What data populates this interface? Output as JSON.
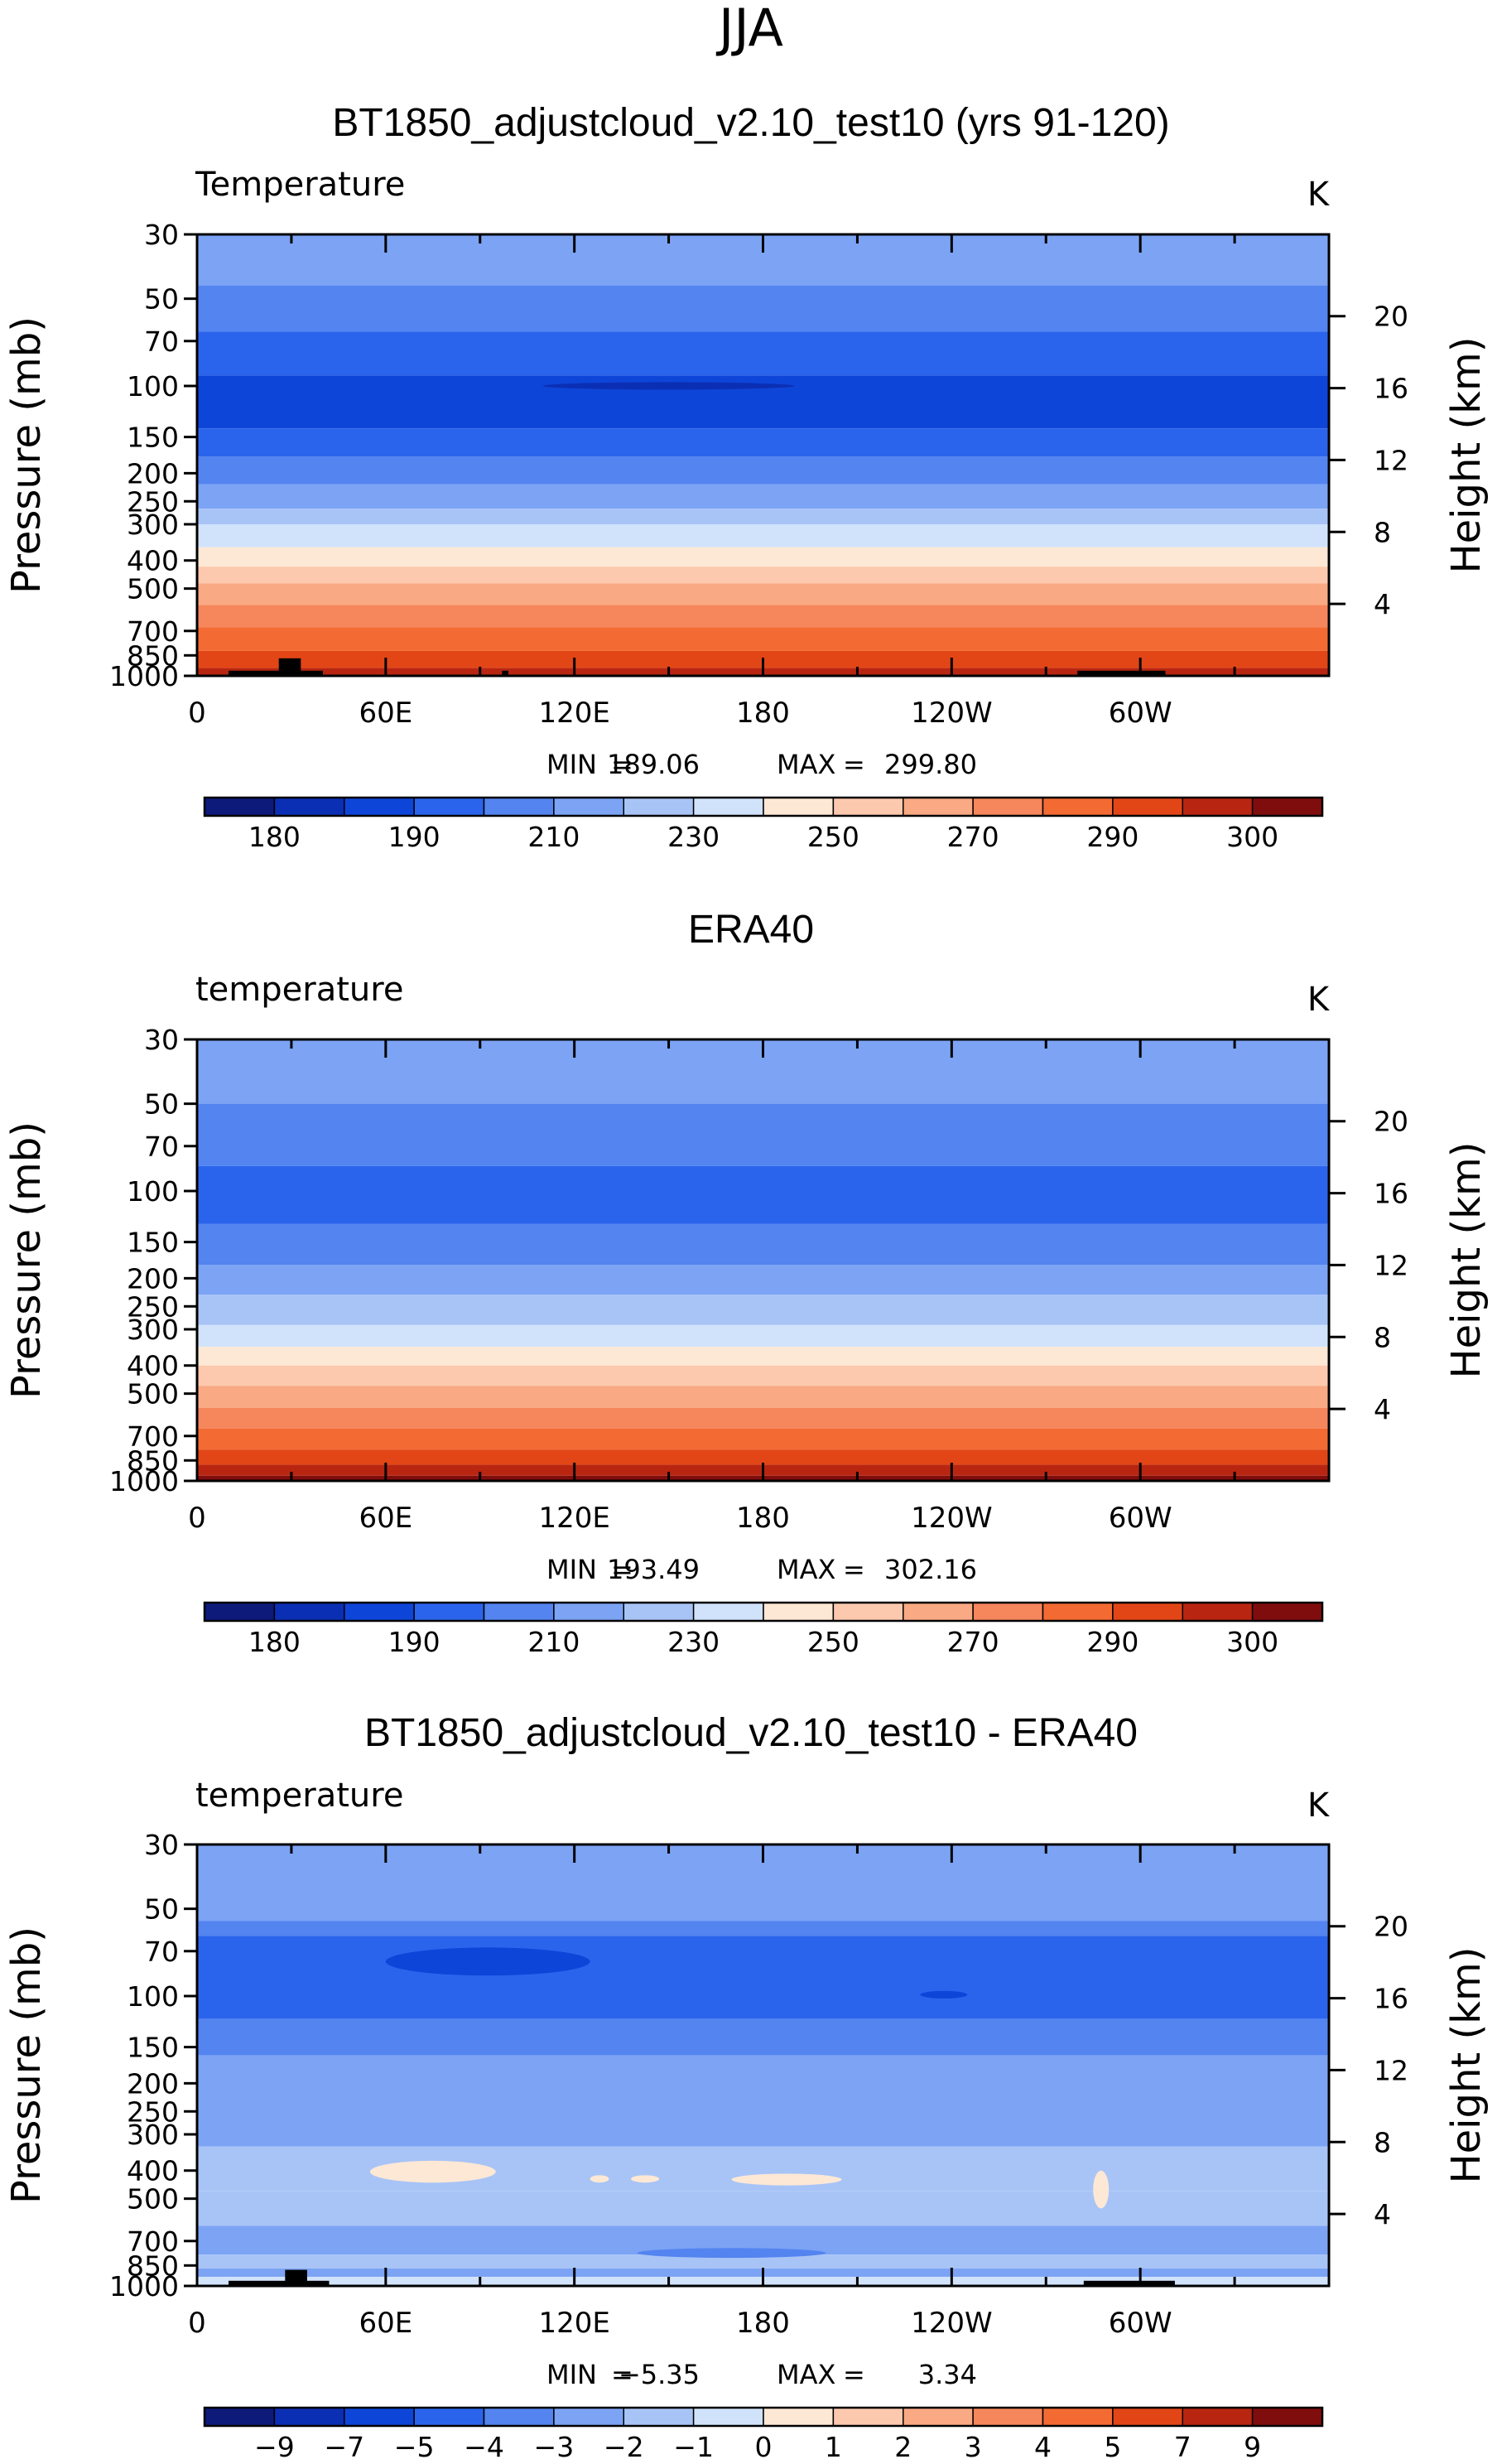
{
  "figure_title": "JJA",
  "chart_data": [
    {
      "type": "heatmap",
      "title": "BT1850_adjustcloud_v2.10_test10 (yrs 91-120)",
      "variable_label": "Temperature",
      "units": "K",
      "ylabel": "Pressure (mb)",
      "y2label": "Height (km)",
      "x_ticks": [
        "0",
        "60E",
        "120E",
        "180",
        "120W",
        "60W"
      ],
      "x_tick_lon": [
        0,
        60,
        120,
        180,
        240,
        300
      ],
      "xlim": [
        0,
        360
      ],
      "y_ticks": [
        "30",
        "50",
        "70",
        "100",
        "150",
        "200",
        "250",
        "300",
        "400",
        "500",
        "700",
        "850",
        "1000"
      ],
      "y_tick_p": [
        30,
        50,
        70,
        100,
        150,
        200,
        250,
        300,
        400,
        500,
        700,
        850,
        1000
      ],
      "ylim": [
        1000,
        30
      ],
      "height_ticks": [
        "20",
        "16",
        "12",
        "8",
        "4"
      ],
      "height_km": [
        20,
        16,
        12,
        8,
        4
      ],
      "min_label": "MIN",
      "min_value": "189.06",
      "max_label": "MAX",
      "max_value": "299.80",
      "colorbar_ticks": [
        "180",
        "190",
        "210",
        "230",
        "250",
        "270",
        "290",
        "300"
      ],
      "colorbar_tick_box": [
        1,
        3,
        5,
        7,
        9,
        11,
        13,
        15
      ],
      "levels_bands": [
        {
          "p": 30,
          "level": 5
        },
        {
          "p": 45,
          "level": 4
        },
        {
          "p": 65,
          "level": 3
        },
        {
          "p": 92,
          "level": 2
        },
        {
          "p": 140,
          "level": 3
        },
        {
          "p": 175,
          "level": 4
        },
        {
          "p": 218,
          "level": 5
        },
        {
          "p": 265,
          "level": 6
        },
        {
          "p": 300,
          "level": 7
        },
        {
          "p": 360,
          "level": 8
        },
        {
          "p": 420,
          "level": 9
        },
        {
          "p": 480,
          "level": 10
        },
        {
          "p": 570,
          "level": 11
        },
        {
          "p": 680,
          "level": 12
        },
        {
          "p": 820,
          "level": 13
        },
        {
          "p": 940,
          "level": 14
        }
      ],
      "patches": [
        {
          "lon": [
            110,
            190
          ],
          "p": [
            97,
            103
          ],
          "level": 1
        }
      ],
      "topography": [
        {
          "lon": [
            10,
            40
          ],
          "p": 960
        },
        {
          "lon": [
            26,
            33
          ],
          "p": 870
        },
        {
          "lon": [
            97,
            99
          ],
          "p": 960
        },
        {
          "lon": [
            280,
            308
          ],
          "p": 960
        }
      ]
    },
    {
      "type": "heatmap",
      "title": "ERA40",
      "variable_label": "temperature",
      "units": "K",
      "ylabel": "Pressure (mb)",
      "y2label": "Height (km)",
      "x_ticks": [
        "0",
        "60E",
        "120E",
        "180",
        "120W",
        "60W"
      ],
      "x_tick_lon": [
        0,
        60,
        120,
        180,
        240,
        300
      ],
      "xlim": [
        0,
        360
      ],
      "y_ticks": [
        "30",
        "50",
        "70",
        "100",
        "150",
        "200",
        "250",
        "300",
        "400",
        "500",
        "700",
        "850",
        "1000"
      ],
      "y_tick_p": [
        30,
        50,
        70,
        100,
        150,
        200,
        250,
        300,
        400,
        500,
        700,
        850,
        1000
      ],
      "ylim": [
        1000,
        30
      ],
      "height_ticks": [
        "20",
        "16",
        "12",
        "8",
        "4"
      ],
      "height_km": [
        20,
        16,
        12,
        8,
        4
      ],
      "min_label": "MIN",
      "min_value": "193.49",
      "max_label": "MAX",
      "max_value": "302.16",
      "colorbar_ticks": [
        "180",
        "190",
        "210",
        "230",
        "250",
        "270",
        "290",
        "300"
      ],
      "colorbar_tick_box": [
        1,
        3,
        5,
        7,
        9,
        11,
        13,
        15
      ],
      "levels_bands": [
        {
          "p": 30,
          "level": 5
        },
        {
          "p": 50,
          "level": 4
        },
        {
          "p": 82,
          "level": 3
        },
        {
          "p": 130,
          "level": 4
        },
        {
          "p": 180,
          "level": 5
        },
        {
          "p": 228,
          "level": 6
        },
        {
          "p": 290,
          "level": 7
        },
        {
          "p": 345,
          "level": 8
        },
        {
          "p": 400,
          "level": 9
        },
        {
          "p": 470,
          "level": 10
        },
        {
          "p": 560,
          "level": 11
        },
        {
          "p": 660,
          "level": 12
        },
        {
          "p": 780,
          "level": 13
        },
        {
          "p": 880,
          "level": 14
        },
        {
          "p": 960,
          "level": 15
        }
      ],
      "patches": [],
      "topography": []
    },
    {
      "type": "heatmap",
      "title": "BT1850_adjustcloud_v2.10_test10 - ERA40",
      "variable_label": "temperature",
      "units": "K",
      "ylabel": "Pressure (mb)",
      "y2label": "Height (km)",
      "x_ticks": [
        "0",
        "60E",
        "120E",
        "180",
        "120W",
        "60W"
      ],
      "x_tick_lon": [
        0,
        60,
        120,
        180,
        240,
        300
      ],
      "xlim": [
        0,
        360
      ],
      "y_ticks": [
        "30",
        "50",
        "70",
        "100",
        "150",
        "200",
        "250",
        "300",
        "400",
        "500",
        "700",
        "850",
        "1000"
      ],
      "y_tick_p": [
        30,
        50,
        70,
        100,
        150,
        200,
        250,
        300,
        400,
        500,
        700,
        850,
        1000
      ],
      "ylim": [
        1000,
        30
      ],
      "height_ticks": [
        "20",
        "16",
        "12",
        "8",
        "4"
      ],
      "height_km": [
        20,
        16,
        12,
        8,
        4
      ],
      "min_label": "MIN",
      "min_value": "−5.35",
      "max_label": "MAX",
      "max_value": "3.34",
      "colorbar_ticks": [
        "−9",
        "−7",
        "−5",
        "−4",
        "−3",
        "−2",
        "−1",
        "0",
        "1",
        "2",
        "3",
        "4",
        "5",
        "7",
        "9"
      ],
      "colorbar_tick_box": [
        1,
        2,
        3,
        4,
        5,
        6,
        7,
        8,
        9,
        10,
        11,
        12,
        13,
        14,
        15
      ],
      "levels_bands": [
        {
          "p": 30,
          "level": 5
        },
        {
          "p": 55,
          "level": 4
        },
        {
          "p": 62,
          "level": 3
        },
        {
          "p": 120,
          "level": 4
        },
        {
          "p": 160,
          "level": 5
        },
        {
          "p": 330,
          "level": 6
        },
        {
          "p": 470,
          "level": 6
        },
        {
          "p": 620,
          "level": 5
        },
        {
          "p": 780,
          "level": 6
        },
        {
          "p": 870,
          "level": 5
        },
        {
          "p": 930,
          "level": 7
        }
      ],
      "patches": [
        {
          "lon": [
            60,
            125
          ],
          "p": [
            68,
            85
          ],
          "level": 2
        },
        {
          "lon": [
            230,
            245
          ],
          "p": [
            96,
            102
          ],
          "level": 2
        },
        {
          "lon": [
            55,
            95
          ],
          "p": [
            370,
            440
          ],
          "level": 8
        },
        {
          "lon": [
            170,
            205
          ],
          "p": [
            410,
            450
          ],
          "level": 8
        },
        {
          "lon": [
            125,
            131
          ],
          "p": [
            415,
            440
          ],
          "level": 8
        },
        {
          "lon": [
            138,
            147
          ],
          "p": [
            415,
            440
          ],
          "level": 8
        },
        {
          "lon": [
            285,
            290
          ],
          "p": [
            400,
            540
          ],
          "level": 8
        },
        {
          "lon": [
            140,
            200
          ],
          "p": [
            740,
            800
          ],
          "level": 4
        }
      ],
      "topography": [
        {
          "lon": [
            10,
            42
          ],
          "p": 960
        },
        {
          "lon": [
            28,
            35
          ],
          "p": 880
        },
        {
          "lon": [
            282,
            311
          ],
          "p": 960
        }
      ]
    }
  ],
  "colormap": [
    "#0d1a7a",
    "#0b2fb4",
    "#0e45d9",
    "#2b64ec",
    "#5384f0",
    "#7ca3f4",
    "#a8c4f6",
    "#d1e3fb",
    "#fde8d5",
    "#fcc9ae",
    "#f9a983",
    "#f6865c",
    "#f36b33",
    "#e24617",
    "#b82612",
    "#800d0d"
  ]
}
